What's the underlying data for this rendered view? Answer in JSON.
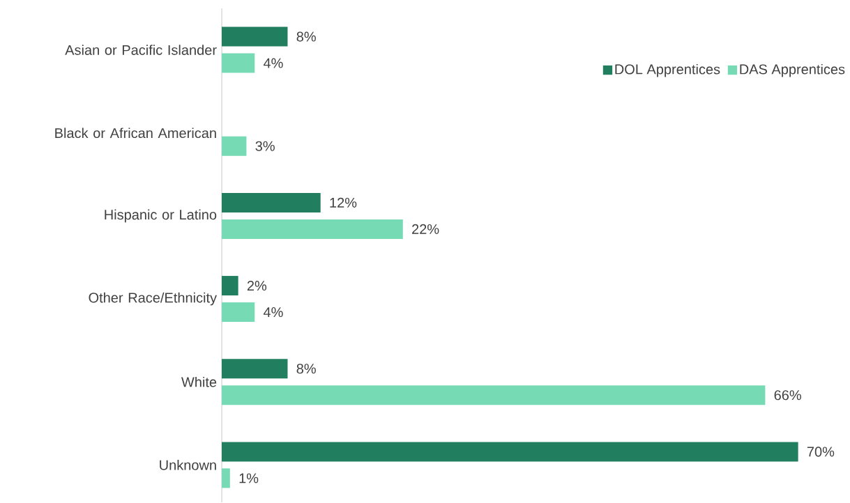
{
  "chart_data": {
    "type": "bar",
    "orientation": "horizontal",
    "legend": "top right",
    "categories": [
      "Asian or Pacific Islander",
      "Black or African American",
      "Hispanic or Latino",
      "Other Race/Ethnicity",
      "White",
      "Unknown"
    ],
    "series": [
      {
        "name": "DOL Apprentices",
        "color": "#217f5f",
        "values": [
          8,
          null,
          12,
          2,
          8,
          70
        ],
        "value_labels": [
          "8%",
          null,
          "12%",
          "2%",
          "8%",
          "70%"
        ]
      },
      {
        "name": "DAS Apprentices",
        "color": "#76dbb4",
        "values": [
          4,
          3,
          22,
          4,
          66,
          1
        ],
        "value_labels": [
          "4%",
          "3%",
          "22%",
          "4%",
          "66%",
          "1%"
        ]
      }
    ]
  }
}
